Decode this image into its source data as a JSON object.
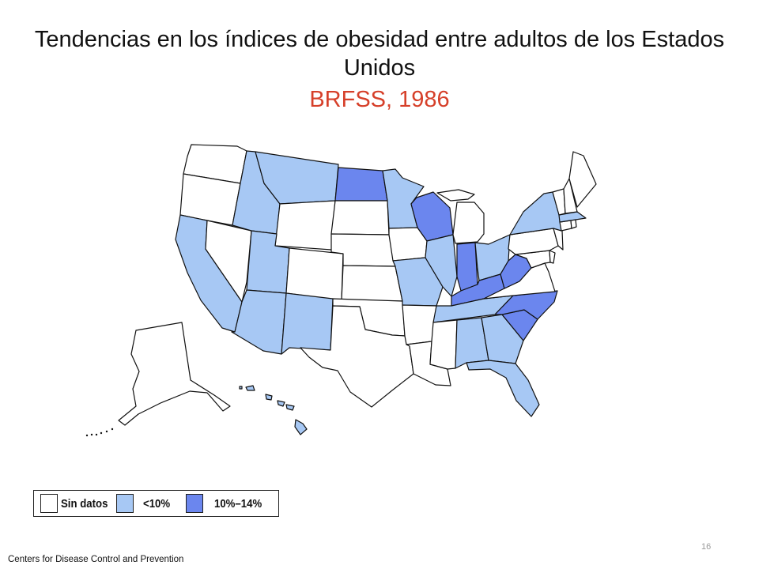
{
  "title": "Tendencias en los índices de obesidad entre adultos de los Estados Unidos",
  "subtitle": "BRFSS, 1986",
  "colors": {
    "no_data": "#ffffff",
    "lt10": "#a7c8f4",
    "p10_14": "#6b86ee",
    "subtitle": "#d6402a"
  },
  "legend": [
    {
      "key": "no_data",
      "label": "Sin datos"
    },
    {
      "key": "lt10",
      "label": "<10%"
    },
    {
      "key": "p10_14",
      "label": "10%–14%"
    }
  ],
  "states": {
    "WA": "no_data",
    "OR": "no_data",
    "CA": "lt10",
    "NV": "no_data",
    "ID": "lt10",
    "MT": "lt10",
    "WY": "no_data",
    "UT": "lt10",
    "AZ": "lt10",
    "CO": "no_data",
    "NM": "lt10",
    "ND": "p10_14",
    "SD": "no_data",
    "NE": "no_data",
    "KS": "no_data",
    "OK": "no_data",
    "TX": "no_data",
    "MN": "lt10",
    "IA": "no_data",
    "MO": "lt10",
    "AR": "no_data",
    "LA": "no_data",
    "WI": "p10_14",
    "IL": "lt10",
    "MI": "no_data",
    "IN": "p10_14",
    "OH": "lt10",
    "KY": "p10_14",
    "TN": "lt10",
    "MS": "no_data",
    "AL": "lt10",
    "GA": "lt10",
    "FL": "lt10",
    "SC": "p10_14",
    "NC": "p10_14",
    "VA": "no_data",
    "WV": "p10_14",
    "PA": "no_data",
    "NY": "lt10",
    "NJ": "no_data",
    "DE": "no_data",
    "MD": "no_data",
    "CT": "no_data",
    "RI": "no_data",
    "MA": "lt10",
    "VT": "no_data",
    "NH": "no_data",
    "ME": "no_data",
    "AK": "no_data",
    "HI": "lt10"
  },
  "footer": "Centers  for Disease Control and Prevention",
  "page_number": "16"
}
